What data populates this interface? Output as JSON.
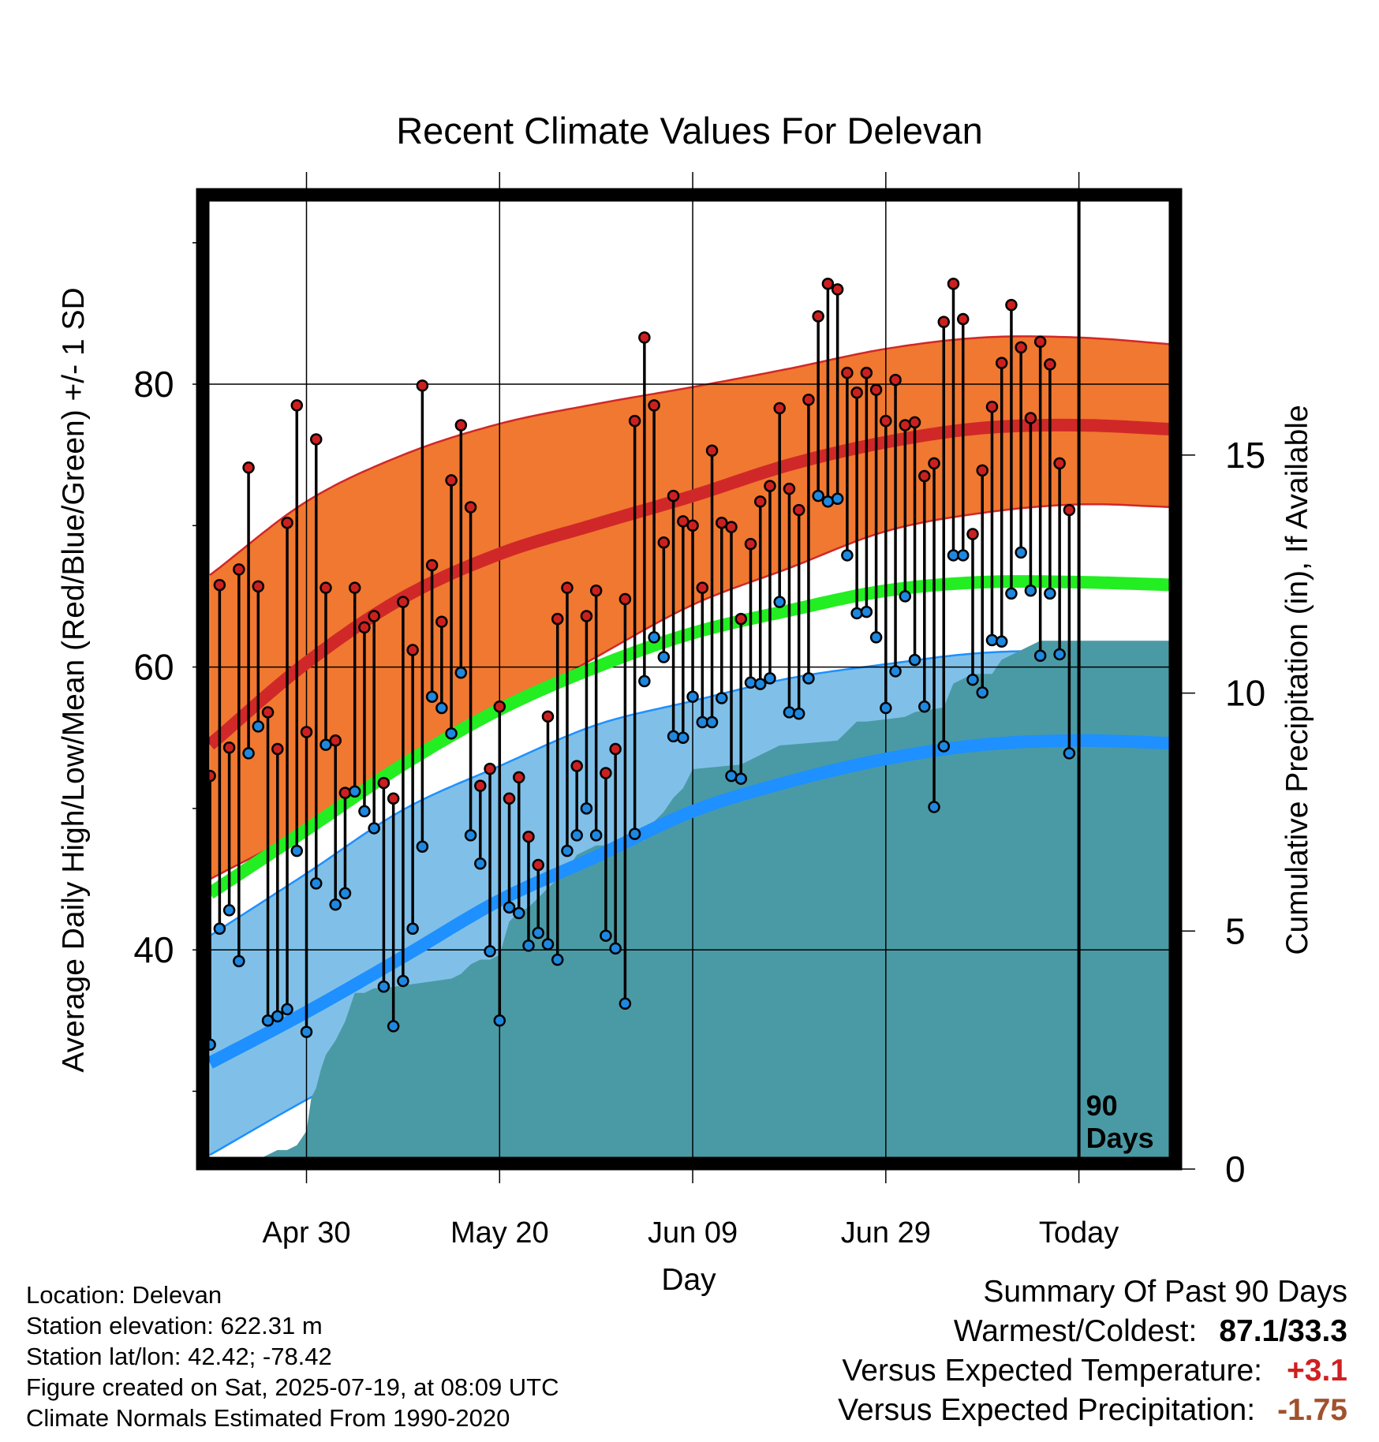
{
  "title": "Recent Climate Values For Delevan",
  "info": {
    "location": "Location: Delevan",
    "elevation": "Station elevation: 622.31 m",
    "latlon": "Station lat/lon: 42.42; -78.42",
    "created": "Figure created on Sat, 2025-07-19, at 08:09 UTC",
    "normals": "Climate Normals Estimated From 1990-2020"
  },
  "summary": {
    "heading": "Summary Of Past 90 Days",
    "warm_cold_label": "Warmest/Coldest:",
    "warm_cold_value": "87.1/33.3",
    "temp_label": "Versus Expected Temperature:",
    "temp_value": "+3.1",
    "precip_label": "Versus Expected Precipitation:",
    "precip_value": "-1.75"
  },
  "colors": {
    "high_band": "#f07830",
    "high_line": "#d02828",
    "low_band": "#80c0e8",
    "low_line": "#1e90ff",
    "mean_line": "#22ee22",
    "precip": "#4a9aa5",
    "high_dot": "#cc2020",
    "low_dot": "#1e88e0"
  },
  "chart_data": {
    "type": "line",
    "xlabel": "Day",
    "ylabel": "Average Daily High/Low/Mean (Red/Blue/Green) +/- 1 SD",
    "y2label": "Cumulative Precipitation (in), If Available",
    "xlim": [
      -0.5,
      100
    ],
    "ylim": [
      24.5,
      93.5
    ],
    "y2lim": [
      0,
      20.5
    ],
    "yticks": [
      40,
      60,
      80
    ],
    "yminor": [
      30,
      50,
      70,
      90
    ],
    "y2ticks": [
      0,
      5,
      10,
      15
    ],
    "xticks": [
      {
        "day": 10,
        "label": "Apr 30"
      },
      {
        "day": 30,
        "label": "May 20"
      },
      {
        "day": 50,
        "label": "Jun 09"
      },
      {
        "day": 70,
        "label": "Jun 29"
      },
      {
        "day": 90,
        "label": "Today"
      }
    ],
    "today_marker": {
      "day": 90,
      "label_line1": "90",
      "label_line2": "Days"
    },
    "normals": {
      "days": [
        0,
        10,
        20,
        30,
        40,
        50,
        60,
        70,
        80,
        90,
        100
      ],
      "high_mean": [
        54.5,
        60.3,
        64.9,
        68.0,
        70.1,
        72.1,
        74.3,
        75.9,
        76.9,
        77.1,
        76.8
      ],
      "high_upper": [
        66.5,
        71.7,
        75.0,
        77.2,
        78.6,
        79.8,
        81.1,
        82.5,
        83.3,
        83.3,
        82.8
      ],
      "high_lower": [
        45.0,
        48.6,
        52.8,
        56.8,
        60.7,
        64.4,
        67.0,
        69.6,
        70.9,
        71.5,
        71.3
      ],
      "mean": [
        44.0,
        48.5,
        53.1,
        57.0,
        60.0,
        62.4,
        64.0,
        65.4,
        66.0,
        66.0,
        65.8
      ],
      "low_mean": [
        32.0,
        35.6,
        39.5,
        43.5,
        46.6,
        49.8,
        51.9,
        53.5,
        54.5,
        54.8,
        54.6
      ],
      "low_upper": [
        41.0,
        45.4,
        49.9,
        53.0,
        55.9,
        57.6,
        59.2,
        60.2,
        61.0,
        61.1,
        60.6
      ],
      "low_lower": [
        25.5,
        29.4,
        33.0,
        36.2,
        39.5,
        42.7,
        45.3,
        47.1,
        48.2,
        48.7,
        48.8
      ]
    },
    "series": [
      {
        "name": "High",
        "values": [
          52.3,
          65.8,
          54.3,
          66.9,
          74.1,
          65.7,
          56.8,
          54.2,
          70.2,
          78.5,
          55.4,
          76.1,
          65.6,
          54.8,
          51.1,
          65.6,
          62.8,
          63.6,
          51.8,
          50.7,
          64.6,
          61.2,
          79.9,
          67.2,
          63.2,
          73.2,
          77.1,
          71.3,
          51.6,
          52.8,
          57.2,
          50.7,
          52.2,
          48.0,
          46.0,
          56.5,
          63.4,
          65.6,
          53.0,
          63.6,
          65.4,
          52.5,
          54.2,
          64.8,
          77.4,
          83.3,
          78.5,
          68.8,
          72.1,
          70.3,
          70.0,
          65.6,
          75.3,
          70.2,
          69.9,
          63.4,
          68.7,
          71.7,
          72.8,
          78.3,
          72.6,
          71.1,
          78.9,
          84.8,
          87.1,
          86.7,
          80.8,
          79.4,
          80.8,
          79.6,
          77.4,
          80.3,
          77.1,
          77.3,
          73.5,
          74.4,
          84.4,
          87.1,
          84.6,
          69.4,
          73.9,
          78.4,
          81.5,
          85.6,
          82.6,
          77.6,
          83.0,
          81.4,
          74.4,
          71.1
        ]
      },
      {
        "name": "Low",
        "values": [
          33.3,
          41.5,
          42.8,
          39.2,
          53.9,
          55.8,
          35.0,
          35.3,
          35.8,
          47.0,
          34.2,
          44.7,
          54.5,
          43.2,
          44.0,
          51.2,
          49.8,
          48.6,
          37.4,
          34.6,
          37.8,
          41.5,
          47.3,
          57.9,
          57.1,
          55.3,
          59.6,
          48.1,
          46.1,
          39.9,
          35.0,
          43.0,
          42.6,
          40.3,
          41.2,
          40.4,
          39.3,
          47.0,
          48.1,
          50.0,
          48.1,
          41.0,
          40.1,
          36.2,
          48.2,
          59.0,
          62.1,
          60.7,
          55.1,
          55.0,
          57.9,
          56.1,
          56.1,
          57.8,
          52.3,
          52.1,
          58.9,
          58.8,
          59.2,
          64.6,
          56.8,
          56.7,
          59.2,
          72.1,
          71.7,
          71.9,
          67.9,
          63.8,
          63.9,
          62.1,
          57.1,
          59.7,
          65.0,
          60.5,
          57.2,
          50.1,
          54.4,
          67.9,
          67.9,
          59.1,
          58.2,
          61.9,
          61.8,
          65.2,
          68.1,
          65.4,
          60.8,
          65.2,
          60.9,
          53.9
        ]
      },
      {
        "name": "Cumulative Precipitation",
        "days": [
          0,
          4.5,
          5,
          7,
          8,
          9,
          10,
          10.5,
          11,
          11.5,
          12,
          13,
          14,
          15,
          16,
          17,
          18,
          25,
          26,
          27,
          28,
          29,
          30,
          31,
          32,
          33,
          34,
          36,
          37,
          38,
          39,
          40,
          41,
          42,
          45,
          46,
          47,
          48,
          49,
          50,
          55,
          56,
          57,
          58,
          59,
          65,
          66,
          67,
          68,
          72,
          73,
          76,
          77,
          78,
          79,
          81,
          82,
          83,
          84,
          85,
          86,
          87,
          100
        ],
        "values": [
          0,
          0,
          0.2,
          0.4,
          0.4,
          0.5,
          0.8,
          1.5,
          1.7,
          2.1,
          2.4,
          2.7,
          3.1,
          3.7,
          3.7,
          3.8,
          3.8,
          4.0,
          4.1,
          4.3,
          4.4,
          4.4,
          4.5,
          5.2,
          5.4,
          5.5,
          5.7,
          6.1,
          6.3,
          6.6,
          6.7,
          6.8,
          6.8,
          6.9,
          6.9,
          7.3,
          7.5,
          7.8,
          8.0,
          8.4,
          8.5,
          8.6,
          8.7,
          8.8,
          8.9,
          9.0,
          9.2,
          9.4,
          9.4,
          9.5,
          9.6,
          9.7,
          10.2,
          10.3,
          10.4,
          10.4,
          10.7,
          10.8,
          10.9,
          11.0,
          11.1,
          11.1,
          11.1
        ]
      }
    ]
  }
}
